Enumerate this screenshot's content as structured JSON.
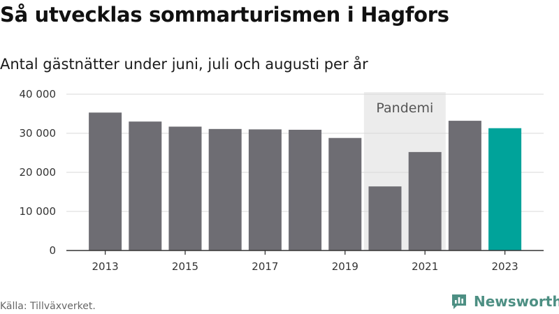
{
  "title": "Så utvecklas sommarturismen i Hagfors",
  "subtitle": "Antal gästnätter under juni, juli och augusti per år",
  "source": "Källa: Tillväxverket.",
  "brand": {
    "name": "Newsworthy",
    "icon": "newsworthy-logo-icon"
  },
  "colors": {
    "bar": "#6e6d73",
    "highlight": "#00a39a",
    "band": "#ececec",
    "grid": "#d9d9d9",
    "axis": "#333333",
    "brand": "#4d8f83"
  },
  "chart_data": {
    "type": "bar",
    "title": "Så utvecklas sommarturismen i Hagfors",
    "subtitle": "Antal gästnätter under juni, juli och augusti per år",
    "categories": [
      2013,
      2014,
      2015,
      2016,
      2017,
      2018,
      2019,
      2020,
      2021,
      2022,
      2023
    ],
    "values": [
      35300,
      33000,
      31700,
      31100,
      31000,
      30900,
      28800,
      16400,
      25200,
      33200,
      31300
    ],
    "highlight_category": 2023,
    "ylim": [
      0,
      40000
    ],
    "yticks": [
      0,
      10000,
      20000,
      30000,
      40000
    ],
    "ytick_labels": [
      "0",
      "10 000",
      "20 000",
      "30 000",
      "40 000"
    ],
    "xtick_labels": [
      "2013",
      "2015",
      "2017",
      "2019",
      "2021",
      "2023"
    ],
    "xlabel": "",
    "ylabel": "",
    "grid": true,
    "annotation": {
      "label": "Pandemi",
      "from": 2020,
      "to": 2021
    }
  }
}
